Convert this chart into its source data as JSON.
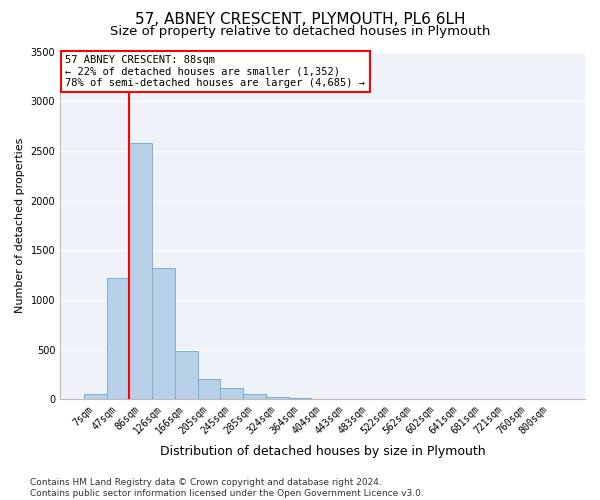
{
  "title1": "57, ABNEY CRESCENT, PLYMOUTH, PL6 6LH",
  "title2": "Size of property relative to detached houses in Plymouth",
  "xlabel": "Distribution of detached houses by size in Plymouth",
  "ylabel": "Number of detached properties",
  "bar_labels": [
    "7sqm",
    "47sqm",
    "86sqm",
    "126sqm",
    "166sqm",
    "205sqm",
    "245sqm",
    "285sqm",
    "324sqm",
    "364sqm",
    "404sqm",
    "443sqm",
    "483sqm",
    "522sqm",
    "562sqm",
    "602sqm",
    "641sqm",
    "681sqm",
    "721sqm",
    "760sqm",
    "800sqm"
  ],
  "bar_values": [
    50,
    1220,
    2580,
    1320,
    490,
    200,
    110,
    55,
    25,
    10,
    3,
    1,
    0,
    0,
    0,
    0,
    0,
    0,
    0,
    0,
    0
  ],
  "bar_color": "#b8d0e8",
  "bar_edgecolor": "#7aafd4",
  "ylim": [
    0,
    3500
  ],
  "yticks": [
    0,
    500,
    1000,
    1500,
    2000,
    2500,
    3000,
    3500
  ],
  "red_line_index": 2,
  "annotation_text": "57 ABNEY CRESCENT: 88sqm\n← 22% of detached houses are smaller (1,352)\n78% of semi-detached houses are larger (4,685) →",
  "annotation_box_color": "white",
  "annotation_box_edgecolor": "red",
  "footer_line1": "Contains HM Land Registry data © Crown copyright and database right 2024.",
  "footer_line2": "Contains public sector information licensed under the Open Government Licence v3.0.",
  "background_color": "#eef2f8",
  "grid_color": "#ffffff",
  "title1_fontsize": 11,
  "title2_fontsize": 9.5,
  "xlabel_fontsize": 9,
  "ylabel_fontsize": 8,
  "tick_fontsize": 7,
  "annot_fontsize": 7.5,
  "footer_fontsize": 6.5
}
